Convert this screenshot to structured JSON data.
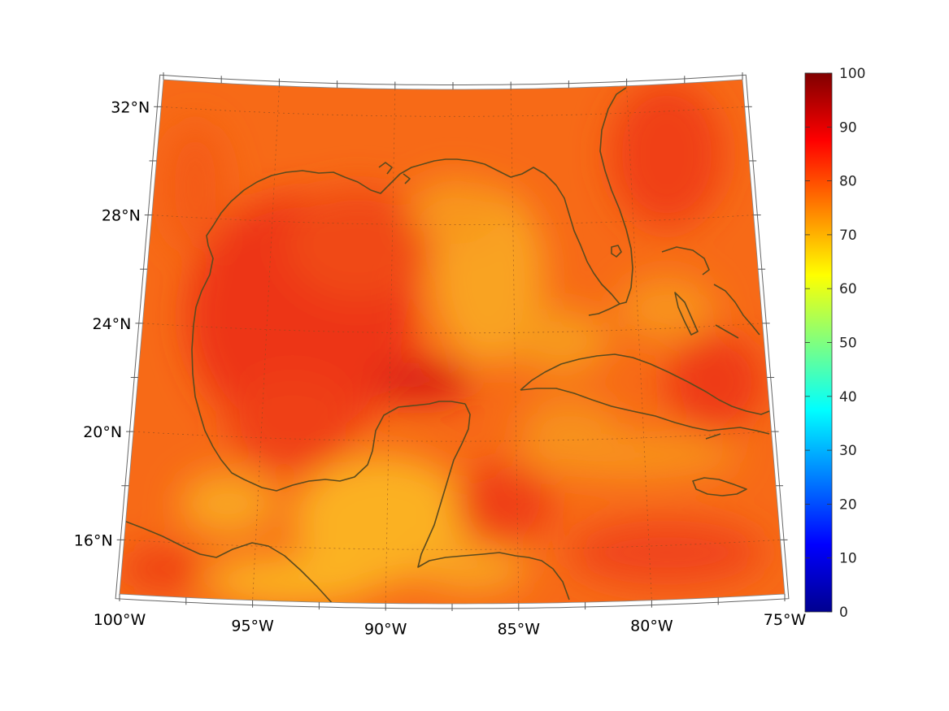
{
  "map": {
    "projection": "conic",
    "region": "Gulf of Mexico and Caribbean",
    "lat_range": [
      14,
      33
    ],
    "lon_range": [
      -100,
      -75
    ],
    "gridlines": "dotted",
    "coastline_color": "#5b4a1e"
  },
  "lat_labels": [
    {
      "lat": 32,
      "text": "32°N"
    },
    {
      "lat": 28,
      "text": "28°N"
    },
    {
      "lat": 24,
      "text": "24°N"
    },
    {
      "lat": 20,
      "text": "20°N"
    },
    {
      "lat": 16,
      "text": "16°N"
    }
  ],
  "lon_labels": [
    {
      "lon": -100,
      "text": "100°W"
    },
    {
      "lon": -95,
      "text": "95°W"
    },
    {
      "lon": -90,
      "text": "90°W"
    },
    {
      "lon": -85,
      "text": "85°W"
    },
    {
      "lon": -80,
      "text": "80°W"
    },
    {
      "lon": -75,
      "text": "75°W"
    }
  ],
  "colorbar": {
    "colormap": "jet",
    "min": 0,
    "max": 100,
    "ticks": [
      "0",
      "10",
      "20",
      "30",
      "40",
      "50",
      "60",
      "70",
      "80",
      "90",
      "100"
    ],
    "placement": "right"
  },
  "field": {
    "dominant_range": [
      65,
      90
    ],
    "background_value": 78
  }
}
